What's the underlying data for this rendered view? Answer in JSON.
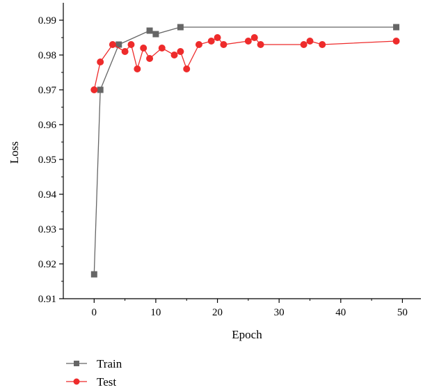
{
  "chart_data": {
    "type": "line",
    "xlabel": "Epoch",
    "ylabel": "Loss",
    "xlim": [
      -5,
      53
    ],
    "ylim": [
      0.91,
      0.995
    ],
    "xticks": [
      0,
      10,
      20,
      30,
      40,
      50
    ],
    "yticks": [
      0.91,
      0.92,
      0.93,
      0.94,
      0.95,
      0.96,
      0.97,
      0.98,
      0.99
    ],
    "grid": false,
    "legend_position": "bottom-left",
    "series": [
      {
        "name": "Train",
        "color": "#666666",
        "marker": "square",
        "x": [
          0,
          1,
          4,
          9,
          10,
          14,
          49
        ],
        "y": [
          0.917,
          0.97,
          0.983,
          0.987,
          0.986,
          0.988,
          0.988
        ]
      },
      {
        "name": "Test",
        "color": "#ee2b2b",
        "marker": "circle",
        "x": [
          0,
          1,
          3,
          5,
          6,
          7,
          8,
          9,
          11,
          13,
          14,
          15,
          17,
          19,
          20,
          21,
          25,
          26,
          27,
          34,
          35,
          37,
          49
        ],
        "y": [
          0.97,
          0.978,
          0.983,
          0.981,
          0.983,
          0.976,
          0.982,
          0.979,
          0.982,
          0.98,
          0.981,
          0.976,
          0.983,
          0.984,
          0.985,
          0.983,
          0.984,
          0.985,
          0.983,
          0.983,
          0.984,
          0.983,
          0.984
        ]
      }
    ]
  }
}
